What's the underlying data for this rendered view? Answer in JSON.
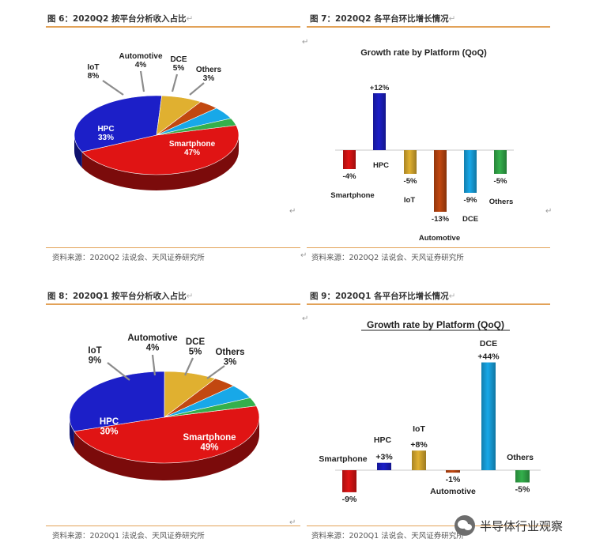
{
  "panels": {
    "fig6": {
      "caption": "图 6：2020Q2 按平台分析收入占比",
      "source": "资料来源：2020Q2 法说会、天风证券研究所"
    },
    "fig7": {
      "caption": "图 7：2020Q2 各平台环比增长情况",
      "source": "资料来源：2020Q2 法说会、天风证券研究所"
    },
    "fig8": {
      "caption": "图 8：2020Q1 按平台分析收入占比",
      "source": "资料来源：2020Q1 法说会、天风证券研究所"
    },
    "fig9": {
      "caption": "图 9：2020Q1 各平台环比增长情况",
      "source": "资料来源：2020Q1 法说会、天风证券研究所"
    }
  },
  "watermark": "半导体行业观察",
  "colors": {
    "smartphone": "#e01414",
    "hpc": "#1c1fc8",
    "iot": "#e0b030",
    "automotive": "#c24810",
    "dce": "#18a8e8",
    "others": "#34b04c",
    "rule": "#e2a258"
  },
  "icons": [
    "return-mark-icon",
    "wechat-icon"
  ],
  "chart_data": [
    {
      "type": "pie",
      "categories": [
        "Smartphone",
        "HPC",
        "IoT",
        "Automotive",
        "DCE",
        "Others"
      ],
      "values": [
        47,
        33,
        8,
        4,
        5,
        3
      ],
      "labels": [
        "47%",
        "33%",
        "8%",
        "4%",
        "5%",
        "3%"
      ]
    },
    {
      "type": "bar",
      "title": "Growth rate by Platform (QoQ)",
      "categories": [
        "Smartphone",
        "HPC",
        "IoT",
        "Automotive",
        "DCE",
        "Others"
      ],
      "values": [
        -4,
        12,
        -5,
        -13,
        -9,
        -5
      ],
      "labels": [
        "-4%",
        "+12%",
        "-5%",
        "-13%",
        "-9%",
        "-5%"
      ]
    },
    {
      "type": "pie",
      "categories": [
        "Smartphone",
        "HPC",
        "IoT",
        "Automotive",
        "DCE",
        "Others"
      ],
      "values": [
        49,
        30,
        9,
        4,
        5,
        3
      ],
      "labels": [
        "49%",
        "30%",
        "9%",
        "4%",
        "5%",
        "3%"
      ]
    },
    {
      "type": "bar",
      "title": "Growth rate by Platform (QoQ)",
      "categories": [
        "Smartphone",
        "HPC",
        "IoT",
        "Automotive",
        "DCE",
        "Others"
      ],
      "values": [
        -9,
        3,
        8,
        -1,
        44,
        -5
      ],
      "labels": [
        "-9%",
        "+3%",
        "+8%",
        "-1%",
        "+44%",
        "-5%"
      ]
    }
  ]
}
